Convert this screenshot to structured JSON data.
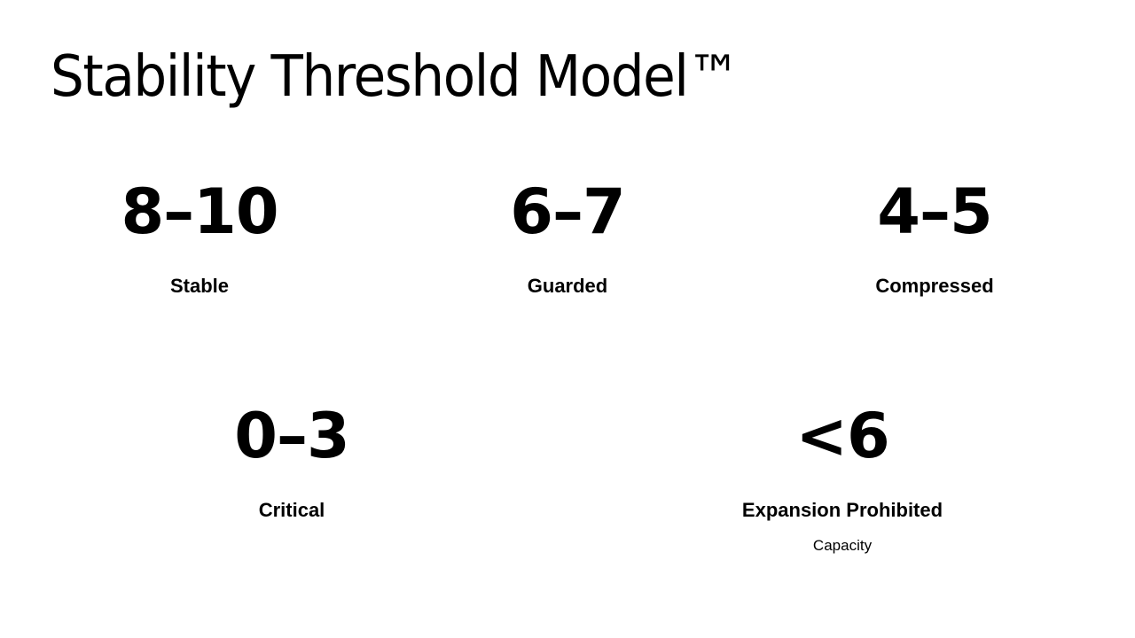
{
  "title": "Stability Threshold Model™",
  "stats": [
    {
      "value": "8–10",
      "label": "Stable"
    },
    {
      "value": "6–7",
      "label": "Guarded"
    },
    {
      "value": "4–5",
      "label": "Compressed"
    },
    {
      "value": "0–3",
      "label": "Critical"
    },
    {
      "value": "<6",
      "label": "Expansion Prohibited",
      "sublabel": "Capacity"
    }
  ]
}
